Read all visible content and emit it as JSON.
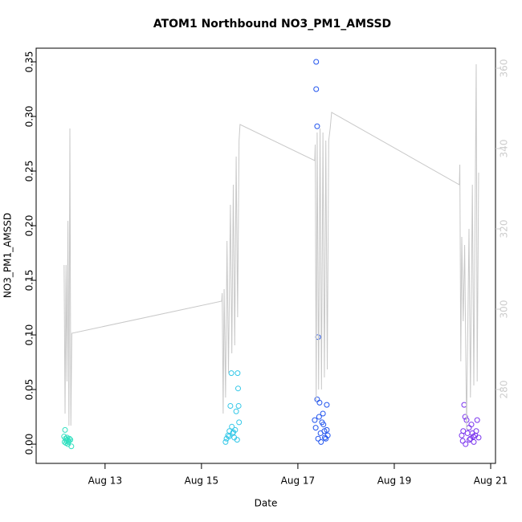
{
  "chart_data": {
    "type": "scatter",
    "title": "ATOM1 Northbound NO3_PM1_AMSSD",
    "x_label": "Date",
    "y_label": "NO3_PM1_AMSSD",
    "xlim": [
      11.57,
      21.1
    ],
    "ylim": [
      -0.0176,
      0.3625
    ],
    "y2lim": [
      261.6,
      365
    ],
    "xticks": [
      {
        "value": 13,
        "label": "Aug 13"
      },
      {
        "value": 15,
        "label": "Aug 15"
      },
      {
        "value": 17,
        "label": "Aug 17"
      },
      {
        "value": 19,
        "label": "Aug 19"
      },
      {
        "value": 21,
        "label": "Aug 21"
      }
    ],
    "yticks": [
      {
        "value": 0,
        "label": "0.00"
      },
      {
        "value": 0.05,
        "label": "0.05"
      },
      {
        "value": 0.1,
        "label": "0.10"
      },
      {
        "value": 0.15,
        "label": "0.15"
      },
      {
        "value": 0.2,
        "label": "0.20"
      },
      {
        "value": 0.25,
        "label": "0.25"
      },
      {
        "value": 0.3,
        "label": "0.30"
      },
      {
        "value": 0.35,
        "label": "0.35"
      }
    ],
    "y2ticks": [
      280,
      300,
      320,
      340,
      360
    ],
    "series": [
      {
        "color": "#33e0c0",
        "x": [
          12.17,
          12.15,
          12.18,
          12.2,
          12.22,
          12.24,
          12.19,
          12.26,
          12.28,
          12.3,
          12.21,
          12.25,
          12.16,
          12.23
        ],
        "values": [
          0.013,
          0.007,
          0.005,
          0.003,
          0.004,
          0.002,
          0.001,
          0.005,
          0.004,
          -0.002,
          0.006,
          0.003,
          0.002,
          0.0
        ]
      },
      {
        "color": "#33c8e8",
        "x": [
          15.5,
          15.52,
          15.55,
          15.58,
          15.6,
          15.62,
          15.65,
          15.68,
          15.7,
          15.72,
          15.75,
          15.76,
          15.77,
          15.78,
          15.74,
          15.63,
          15.57,
          15.66
        ],
        "values": [
          0.002,
          0.005,
          0.008,
          0.012,
          0.035,
          0.065,
          0.01,
          0.006,
          0.013,
          0.03,
          0.065,
          0.051,
          0.035,
          0.02,
          0.004,
          0.016,
          0.007,
          0.011
        ]
      },
      {
        "color": "#2255ee",
        "x": [
          17.38,
          17.38,
          17.4,
          17.42,
          17.4,
          17.45,
          17.35,
          17.37,
          17.42,
          17.47,
          17.5,
          17.52,
          17.55,
          17.58,
          17.6,
          17.62,
          17.48,
          17.44,
          17.53,
          17.56,
          17.6
        ],
        "values": [
          0.35,
          0.325,
          0.291,
          0.098,
          0.041,
          0.038,
          0.022,
          0.015,
          0.005,
          0.01,
          0.02,
          0.028,
          0.012,
          0.005,
          0.036,
          0.008,
          0.002,
          0.025,
          0.018,
          0.006,
          0.013
        ]
      },
      {
        "color": "#7a33ee",
        "x": [
          20.45,
          20.47,
          20.5,
          20.52,
          20.4,
          20.42,
          20.55,
          20.58,
          20.6,
          20.62,
          20.65,
          20.68,
          20.7,
          20.72,
          20.75,
          20.43,
          20.48,
          20.56,
          20.64
        ],
        "values": [
          0.036,
          0.025,
          0.022,
          0.01,
          0.008,
          0.003,
          0.015,
          0.005,
          0.018,
          0.01,
          0.002,
          0.008,
          0.012,
          0.022,
          0.006,
          0.012,
          0.0,
          0.004,
          0.007
        ]
      },
      {
        "type": "line",
        "axis": "y2",
        "color": "#c8c8c8",
        "x": [
          12.15,
          12.17,
          12.19,
          12.21,
          12.23,
          12.25,
          12.27,
          12.29,
          12.31,
          15.42,
          15.43,
          15.45,
          15.47,
          15.5,
          15.53,
          15.56,
          15.6,
          15.63,
          15.66,
          15.69,
          15.72,
          15.75,
          15.78,
          15.8,
          17.35,
          17.36,
          17.38,
          17.4,
          17.43,
          17.46,
          17.49,
          17.52,
          17.55,
          17.58,
          17.61,
          17.64,
          17.67,
          17.7,
          20.35,
          20.36,
          20.38,
          20.4,
          20.43,
          20.46,
          20.5,
          20.55,
          20.58,
          20.62,
          20.65,
          20.7,
          20.72,
          20.75
        ],
        "values": [
          311,
          274,
          311,
          282,
          322,
          271,
          345,
          271,
          294,
          302,
          304,
          274,
          305,
          278,
          317,
          284,
          326,
          289,
          331,
          291,
          338,
          298,
          342,
          346,
          337,
          341,
          277,
          344,
          280,
          345,
          280,
          344,
          283,
          342,
          285,
          342,
          345,
          349,
          331,
          336,
          287,
          318,
          297,
          316,
          270,
          320,
          278,
          331,
          281,
          361,
          282,
          334
        ]
      }
    ]
  }
}
